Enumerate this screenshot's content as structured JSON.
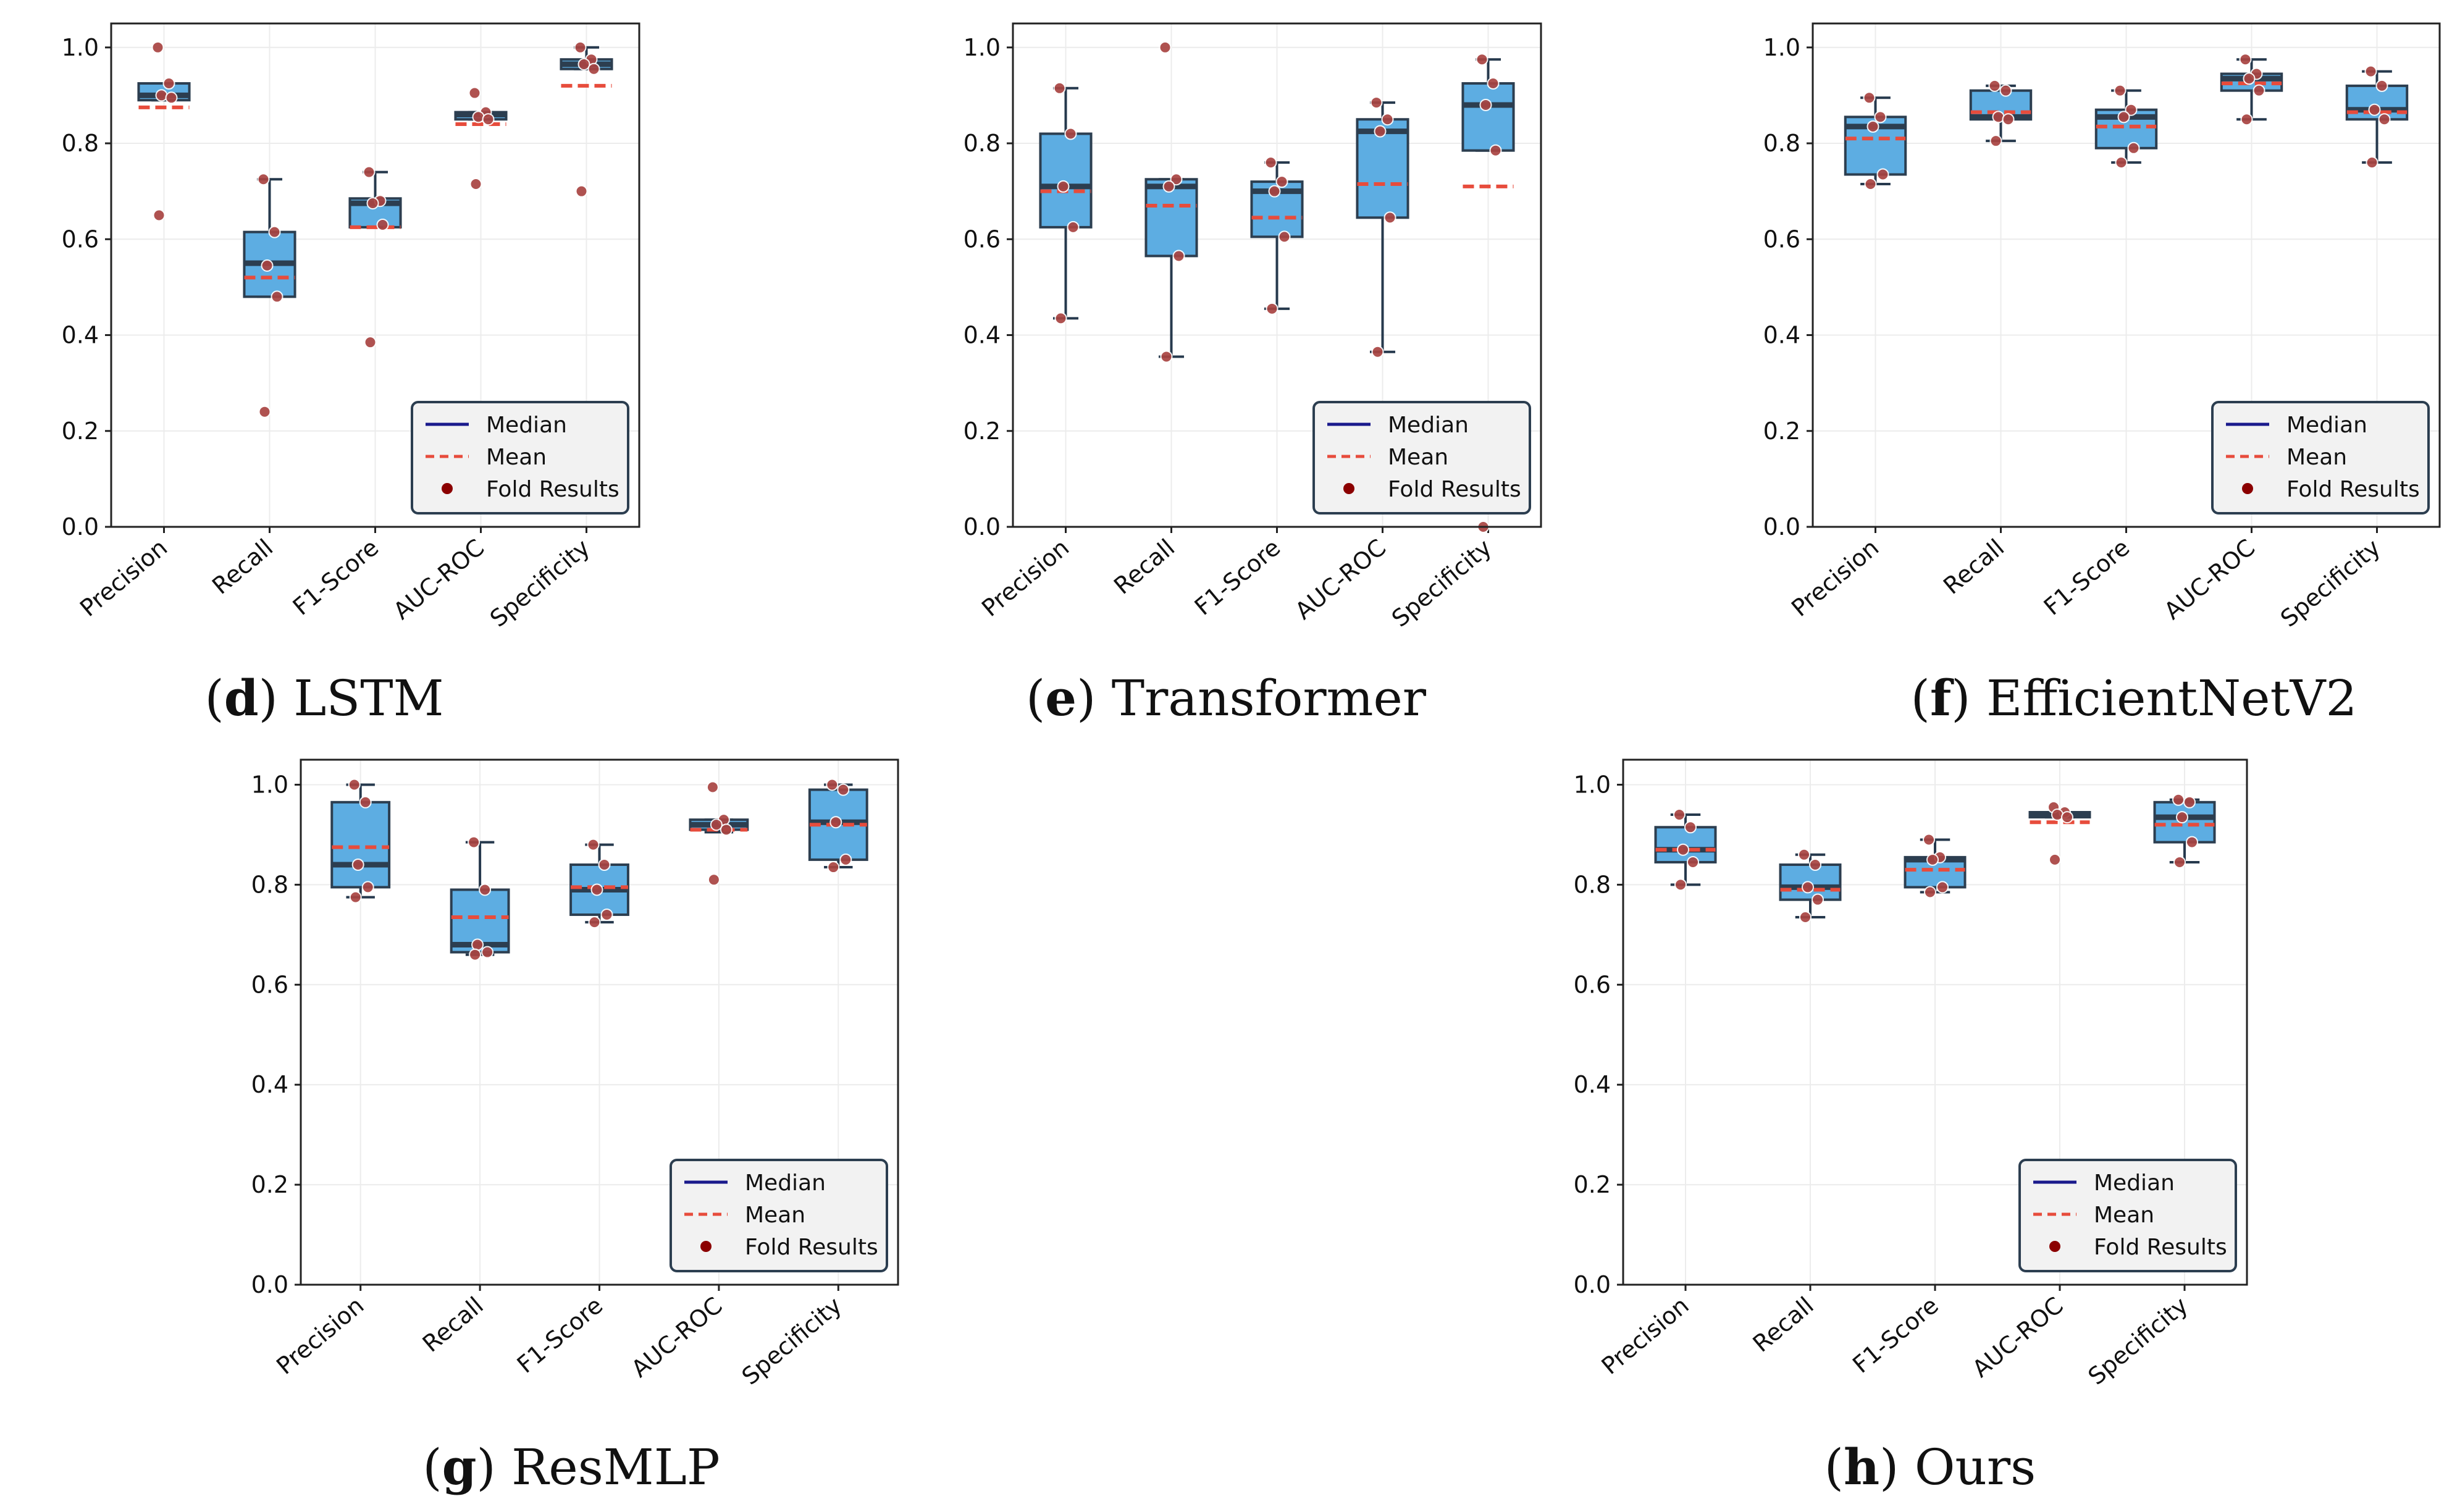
{
  "chart_data": [
    {
      "panel": "d",
      "name": "LSTM",
      "type": "box",
      "categories": [
        "Precision",
        "Recall",
        "F1-Score",
        "AUC-ROC",
        "Specificity"
      ],
      "ylim": [
        0,
        1.05
      ],
      "yticks": [
        "0.0",
        "0.2",
        "0.4",
        "0.6",
        "0.8",
        "1.0"
      ],
      "legend": [
        "Median",
        "Mean",
        "Fold Results"
      ],
      "legend_position": "lower-right",
      "boxes": [
        {
          "q1": 0.89,
          "median": 0.9,
          "q3": 0.925,
          "wlo": 0.89,
          "whi": 0.925,
          "mean": 0.875,
          "points": [
            1.0,
            0.925,
            0.9,
            0.895,
            0.65
          ]
        },
        {
          "q1": 0.48,
          "median": 0.55,
          "q3": 0.615,
          "wlo": 0.48,
          "whi": 0.725,
          "mean": 0.52,
          "points": [
            0.725,
            0.615,
            0.545,
            0.48,
            0.24
          ]
        },
        {
          "q1": 0.625,
          "median": 0.675,
          "q3": 0.685,
          "wlo": 0.625,
          "whi": 0.74,
          "mean": 0.625,
          "points": [
            0.74,
            0.68,
            0.675,
            0.63,
            0.385
          ]
        },
        {
          "q1": 0.85,
          "median": 0.86,
          "q3": 0.865,
          "wlo": 0.85,
          "whi": 0.865,
          "mean": 0.84,
          "points": [
            0.905,
            0.865,
            0.855,
            0.85,
            0.715
          ]
        },
        {
          "q1": 0.955,
          "median": 0.965,
          "q3": 0.975,
          "wlo": 0.955,
          "whi": 1.0,
          "mean": 0.92,
          "points": [
            1.0,
            0.975,
            0.965,
            0.955,
            0.7
          ]
        }
      ]
    },
    {
      "panel": "e",
      "name": "Transformer",
      "type": "box",
      "categories": [
        "Precision",
        "Recall",
        "F1-Score",
        "AUC-ROC",
        "Specificity"
      ],
      "ylim": [
        0,
        1.05
      ],
      "yticks": [
        "0.0",
        "0.2",
        "0.4",
        "0.6",
        "0.8",
        "1.0"
      ],
      "legend": [
        "Median",
        "Mean",
        "Fold Results"
      ],
      "legend_position": "lower-right",
      "boxes": [
        {
          "q1": 0.625,
          "median": 0.71,
          "q3": 0.82,
          "wlo": 0.435,
          "whi": 0.915,
          "mean": 0.7,
          "points": [
            0.915,
            0.82,
            0.71,
            0.625,
            0.435
          ]
        },
        {
          "q1": 0.565,
          "median": 0.71,
          "q3": 0.725,
          "wlo": 0.355,
          "whi": 0.725,
          "mean": 0.67,
          "points": [
            1.0,
            0.725,
            0.71,
            0.565,
            0.355
          ]
        },
        {
          "q1": 0.605,
          "median": 0.7,
          "q3": 0.72,
          "wlo": 0.455,
          "whi": 0.76,
          "mean": 0.645,
          "points": [
            0.76,
            0.72,
            0.7,
            0.605,
            0.455
          ]
        },
        {
          "q1": 0.645,
          "median": 0.825,
          "q3": 0.85,
          "wlo": 0.365,
          "whi": 0.885,
          "mean": 0.715,
          "points": [
            0.885,
            0.85,
            0.825,
            0.645,
            0.365
          ]
        },
        {
          "q1": 0.785,
          "median": 0.88,
          "q3": 0.925,
          "wlo": 0.785,
          "whi": 0.975,
          "mean": 0.71,
          "points": [
            0.975,
            0.925,
            0.88,
            0.785,
            0.0
          ]
        }
      ]
    },
    {
      "panel": "f",
      "name": "EfficientNetV2",
      "type": "box",
      "categories": [
        "Precision",
        "Recall",
        "F1-Score",
        "AUC-ROC",
        "Specificity"
      ],
      "ylim": [
        0,
        1.05
      ],
      "yticks": [
        "0.0",
        "0.2",
        "0.4",
        "0.6",
        "0.8",
        "1.0"
      ],
      "legend": [
        "Median",
        "Mean",
        "Fold Results"
      ],
      "legend_position": "lower-right",
      "boxes": [
        {
          "q1": 0.735,
          "median": 0.835,
          "q3": 0.855,
          "wlo": 0.715,
          "whi": 0.895,
          "mean": 0.81,
          "points": [
            0.895,
            0.855,
            0.835,
            0.735,
            0.715
          ]
        },
        {
          "q1": 0.85,
          "median": 0.855,
          "q3": 0.91,
          "wlo": 0.805,
          "whi": 0.92,
          "mean": 0.865,
          "points": [
            0.92,
            0.91,
            0.855,
            0.85,
            0.805
          ]
        },
        {
          "q1": 0.79,
          "median": 0.855,
          "q3": 0.87,
          "wlo": 0.76,
          "whi": 0.91,
          "mean": 0.835,
          "points": [
            0.91,
            0.87,
            0.855,
            0.79,
            0.76
          ]
        },
        {
          "q1": 0.91,
          "median": 0.935,
          "q3": 0.945,
          "wlo": 0.85,
          "whi": 0.975,
          "mean": 0.925,
          "points": [
            0.975,
            0.945,
            0.935,
            0.91,
            0.85
          ]
        },
        {
          "q1": 0.85,
          "median": 0.87,
          "q3": 0.92,
          "wlo": 0.76,
          "whi": 0.95,
          "mean": 0.865,
          "points": [
            0.95,
            0.92,
            0.87,
            0.85,
            0.76
          ]
        }
      ]
    },
    {
      "panel": "g",
      "name": "ResMLP",
      "type": "box",
      "categories": [
        "Precision",
        "Recall",
        "F1-Score",
        "AUC-ROC",
        "Specificity"
      ],
      "ylim": [
        0,
        1.05
      ],
      "yticks": [
        "0.0",
        "0.2",
        "0.4",
        "0.6",
        "0.8",
        "1.0"
      ],
      "legend": [
        "Median",
        "Mean",
        "Fold Results"
      ],
      "legend_position": "lower-right",
      "boxes": [
        {
          "q1": 0.795,
          "median": 0.84,
          "q3": 0.965,
          "wlo": 0.775,
          "whi": 1.0,
          "mean": 0.875,
          "points": [
            1.0,
            0.965,
            0.84,
            0.795,
            0.775
          ]
        },
        {
          "q1": 0.665,
          "median": 0.68,
          "q3": 0.79,
          "wlo": 0.66,
          "whi": 0.885,
          "mean": 0.735,
          "points": [
            0.885,
            0.79,
            0.68,
            0.665,
            0.66
          ]
        },
        {
          "q1": 0.74,
          "median": 0.79,
          "q3": 0.84,
          "wlo": 0.725,
          "whi": 0.88,
          "mean": 0.795,
          "points": [
            0.88,
            0.84,
            0.79,
            0.74,
            0.725
          ]
        },
        {
          "q1": 0.91,
          "median": 0.92,
          "q3": 0.93,
          "wlo": 0.905,
          "whi": 0.93,
          "mean": 0.91,
          "points": [
            0.995,
            0.93,
            0.92,
            0.91,
            0.81
          ]
        },
        {
          "q1": 0.85,
          "median": 0.925,
          "q3": 0.99,
          "wlo": 0.835,
          "whi": 1.0,
          "mean": 0.92,
          "points": [
            1.0,
            0.99,
            0.925,
            0.85,
            0.835
          ]
        }
      ]
    },
    {
      "panel": "h",
      "name": "Ours",
      "type": "box",
      "categories": [
        "Precision",
        "Recall",
        "F1-Score",
        "AUC-ROC",
        "Specificity"
      ],
      "ylim": [
        0,
        1.05
      ],
      "yticks": [
        "0.0",
        "0.2",
        "0.4",
        "0.6",
        "0.8",
        "1.0"
      ],
      "legend": [
        "Median",
        "Mean",
        "Fold Results"
      ],
      "legend_position": "lower-right",
      "boxes": [
        {
          "q1": 0.845,
          "median": 0.87,
          "q3": 0.915,
          "wlo": 0.8,
          "whi": 0.94,
          "mean": 0.87,
          "points": [
            0.94,
            0.915,
            0.87,
            0.845,
            0.8
          ]
        },
        {
          "q1": 0.77,
          "median": 0.795,
          "q3": 0.84,
          "wlo": 0.735,
          "whi": 0.86,
          "mean": 0.79,
          "points": [
            0.86,
            0.84,
            0.795,
            0.77,
            0.735
          ]
        },
        {
          "q1": 0.795,
          "median": 0.85,
          "q3": 0.855,
          "wlo": 0.785,
          "whi": 0.89,
          "mean": 0.83,
          "points": [
            0.89,
            0.855,
            0.85,
            0.795,
            0.785
          ]
        },
        {
          "q1": 0.935,
          "median": 0.94,
          "q3": 0.945,
          "wlo": 0.935,
          "whi": 0.945,
          "mean": 0.925,
          "points": [
            0.955,
            0.945,
            0.94,
            0.935,
            0.85
          ]
        },
        {
          "q1": 0.885,
          "median": 0.935,
          "q3": 0.965,
          "wlo": 0.845,
          "whi": 0.97,
          "mean": 0.92,
          "points": [
            0.97,
            0.965,
            0.935,
            0.885,
            0.845
          ]
        }
      ]
    }
  ]
}
